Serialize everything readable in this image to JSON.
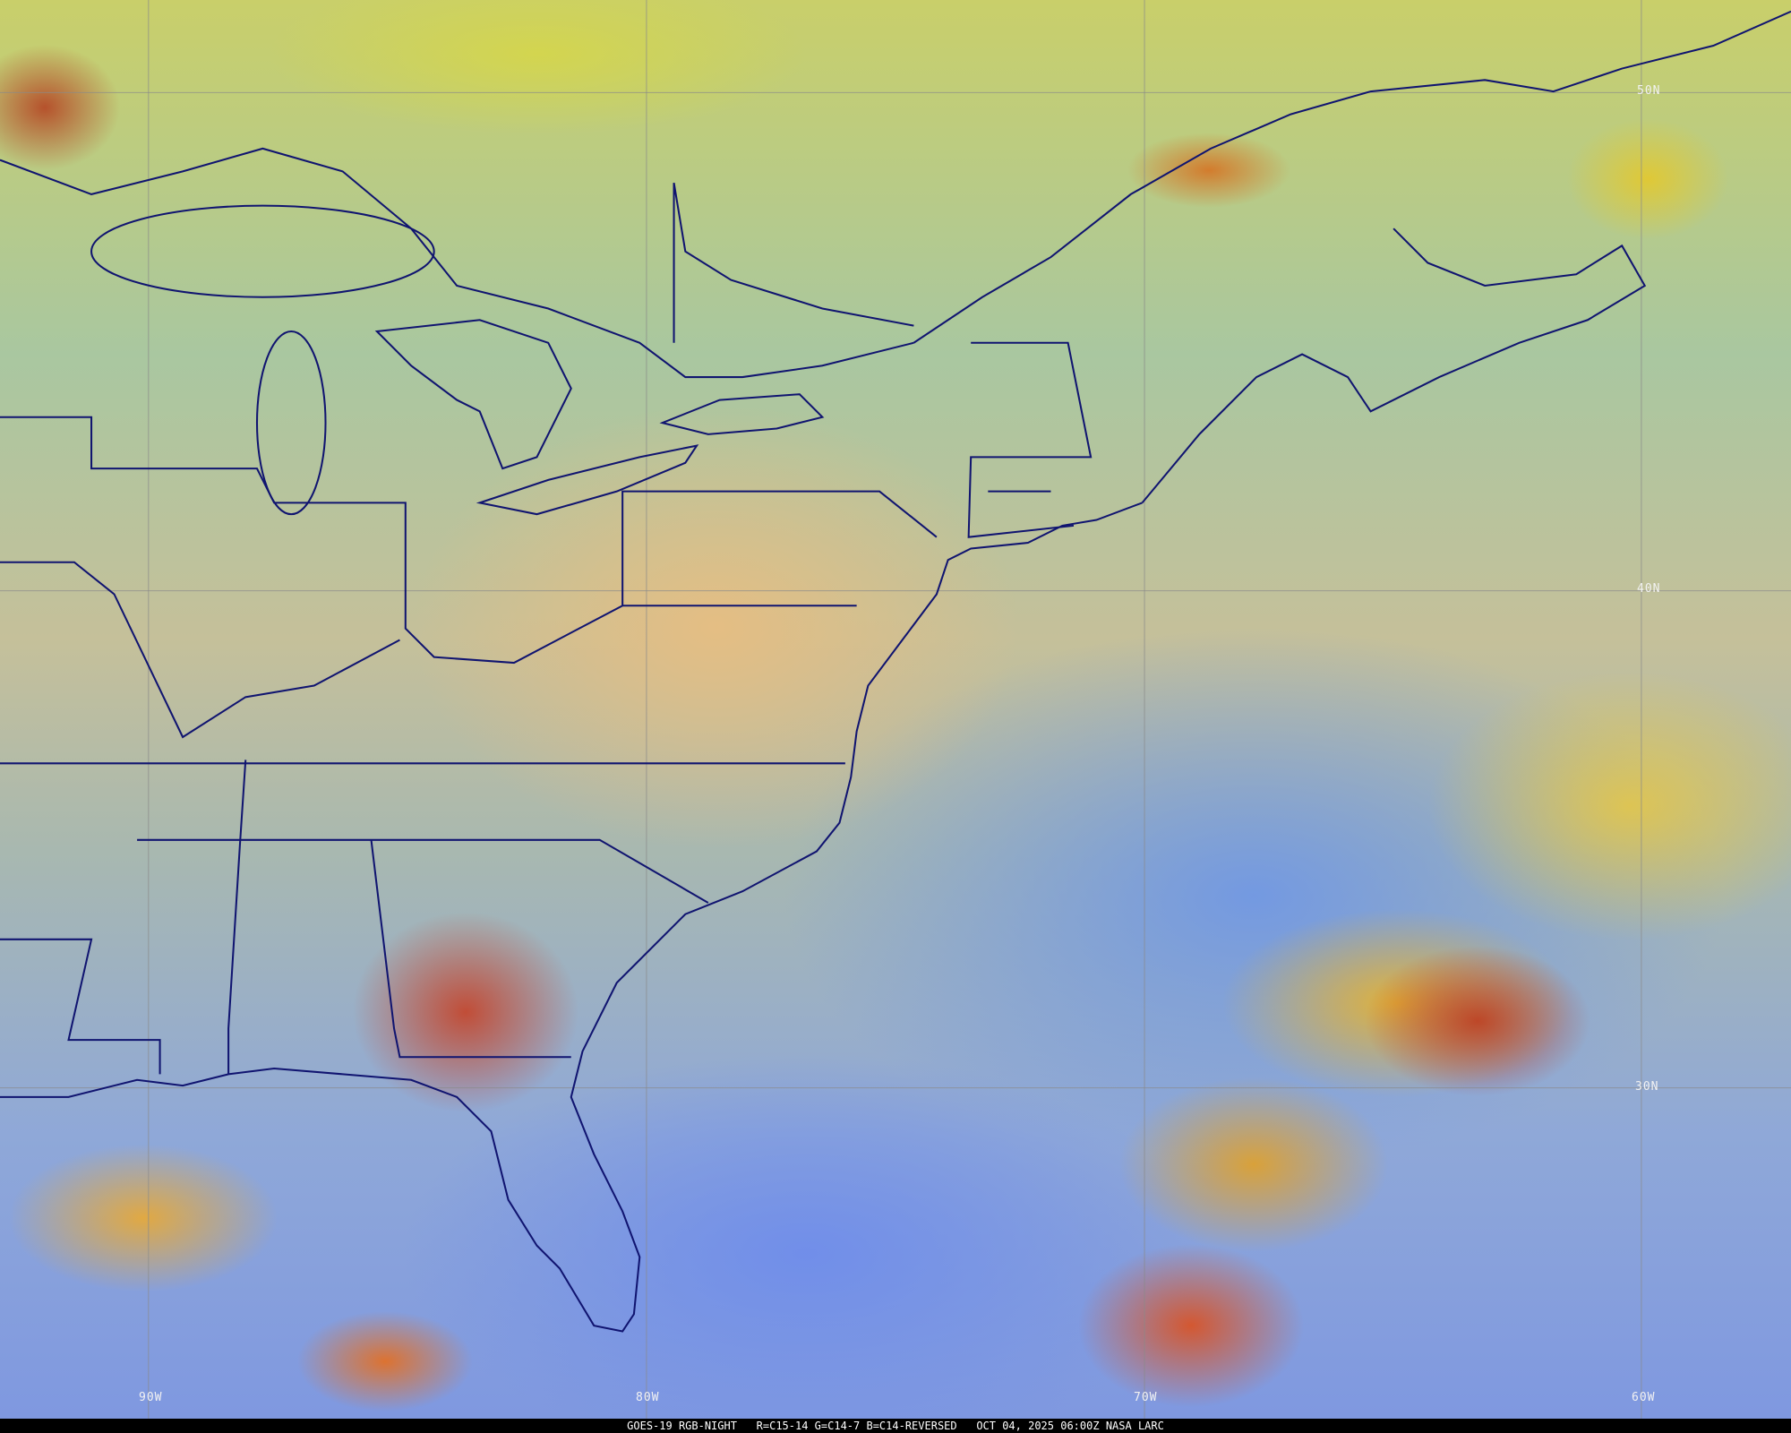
{
  "map": {
    "lat_labels": [
      "50N",
      "40N",
      "30N"
    ],
    "lon_labels": [
      "90W",
      "80W",
      "70W",
      "60W"
    ],
    "colors": {
      "coastline": "#101470",
      "gridline": "#8a8a8a",
      "caption_bg": "#000000",
      "caption_text": "#ffffff"
    }
  },
  "caption": {
    "satellite": "GOES-19 RGB-NIGHT",
    "recipe": "R=C15-14 G=C14-7 B=C14-REVERSED",
    "timestamp": "OCT 04, 2025 06:00Z",
    "source": "NASA LARC"
  }
}
